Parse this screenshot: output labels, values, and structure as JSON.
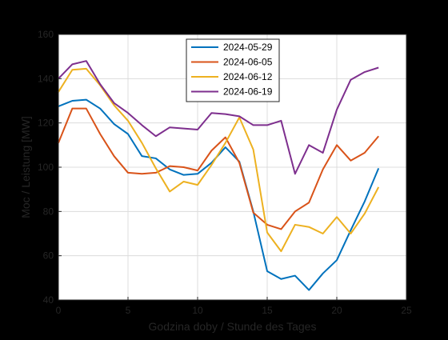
{
  "chart_data": {
    "type": "line",
    "title": "",
    "xlabel": "Godzina doby / Stunde des Tages",
    "ylabel": "Moc / Leistung [MW]",
    "xlim": [
      0,
      25
    ],
    "ylim": [
      40,
      160
    ],
    "xticks": [
      0,
      5,
      10,
      15,
      20,
      25
    ],
    "yticks": [
      40,
      60,
      80,
      100,
      120,
      140,
      160
    ],
    "grid": true,
    "legend_position": "top-center",
    "x": [
      0,
      1,
      2,
      3,
      4,
      5,
      6,
      7,
      8,
      9,
      10,
      11,
      12,
      13,
      14,
      15,
      16,
      17,
      18,
      19,
      20,
      21,
      22,
      23
    ],
    "series": [
      {
        "name": "2024-05-29",
        "color": "#0072BD",
        "values": [
          127.5,
          130.0,
          130.5,
          126.5,
          119.5,
          115.0,
          105.0,
          104.0,
          99.0,
          96.5,
          97.0,
          102.0,
          109.0,
          102.5,
          80.0,
          53.0,
          49.5,
          51.0,
          44.5,
          52.0,
          58.0,
          71.5,
          84.5,
          99.5
        ]
      },
      {
        "name": "2024-06-05",
        "color": "#D95319",
        "values": [
          111.0,
          126.5,
          126.5,
          115.0,
          105.0,
          97.5,
          97.0,
          97.5,
          100.5,
          100.0,
          98.5,
          107.5,
          113.5,
          102.0,
          79.5,
          74.0,
          72.0,
          80.0,
          84.0,
          99.0,
          110.0,
          103.0,
          106.5,
          114.0
        ]
      },
      {
        "name": "2024-06-12",
        "color": "#EDB120",
        "values": [
          134.0,
          144.0,
          144.5,
          137.0,
          128.0,
          121.0,
          111.0,
          99.5,
          89.0,
          93.5,
          92.0,
          101.0,
          111.0,
          122.5,
          108.0,
          70.5,
          62.0,
          74.0,
          73.0,
          70.0,
          77.5,
          70.0,
          79.0,
          91.0
        ]
      },
      {
        "name": "2024-06-19",
        "color": "#7E2F8E",
        "values": [
          140.0,
          146.5,
          148.0,
          137.5,
          129.0,
          124.5,
          119.0,
          114.0,
          118.0,
          117.5,
          117.0,
          124.5,
          124.0,
          123.0,
          119.0,
          119.0,
          121.0,
          97.0,
          110.0,
          106.5,
          126.0,
          139.5,
          143.0,
          145.0
        ]
      }
    ]
  }
}
